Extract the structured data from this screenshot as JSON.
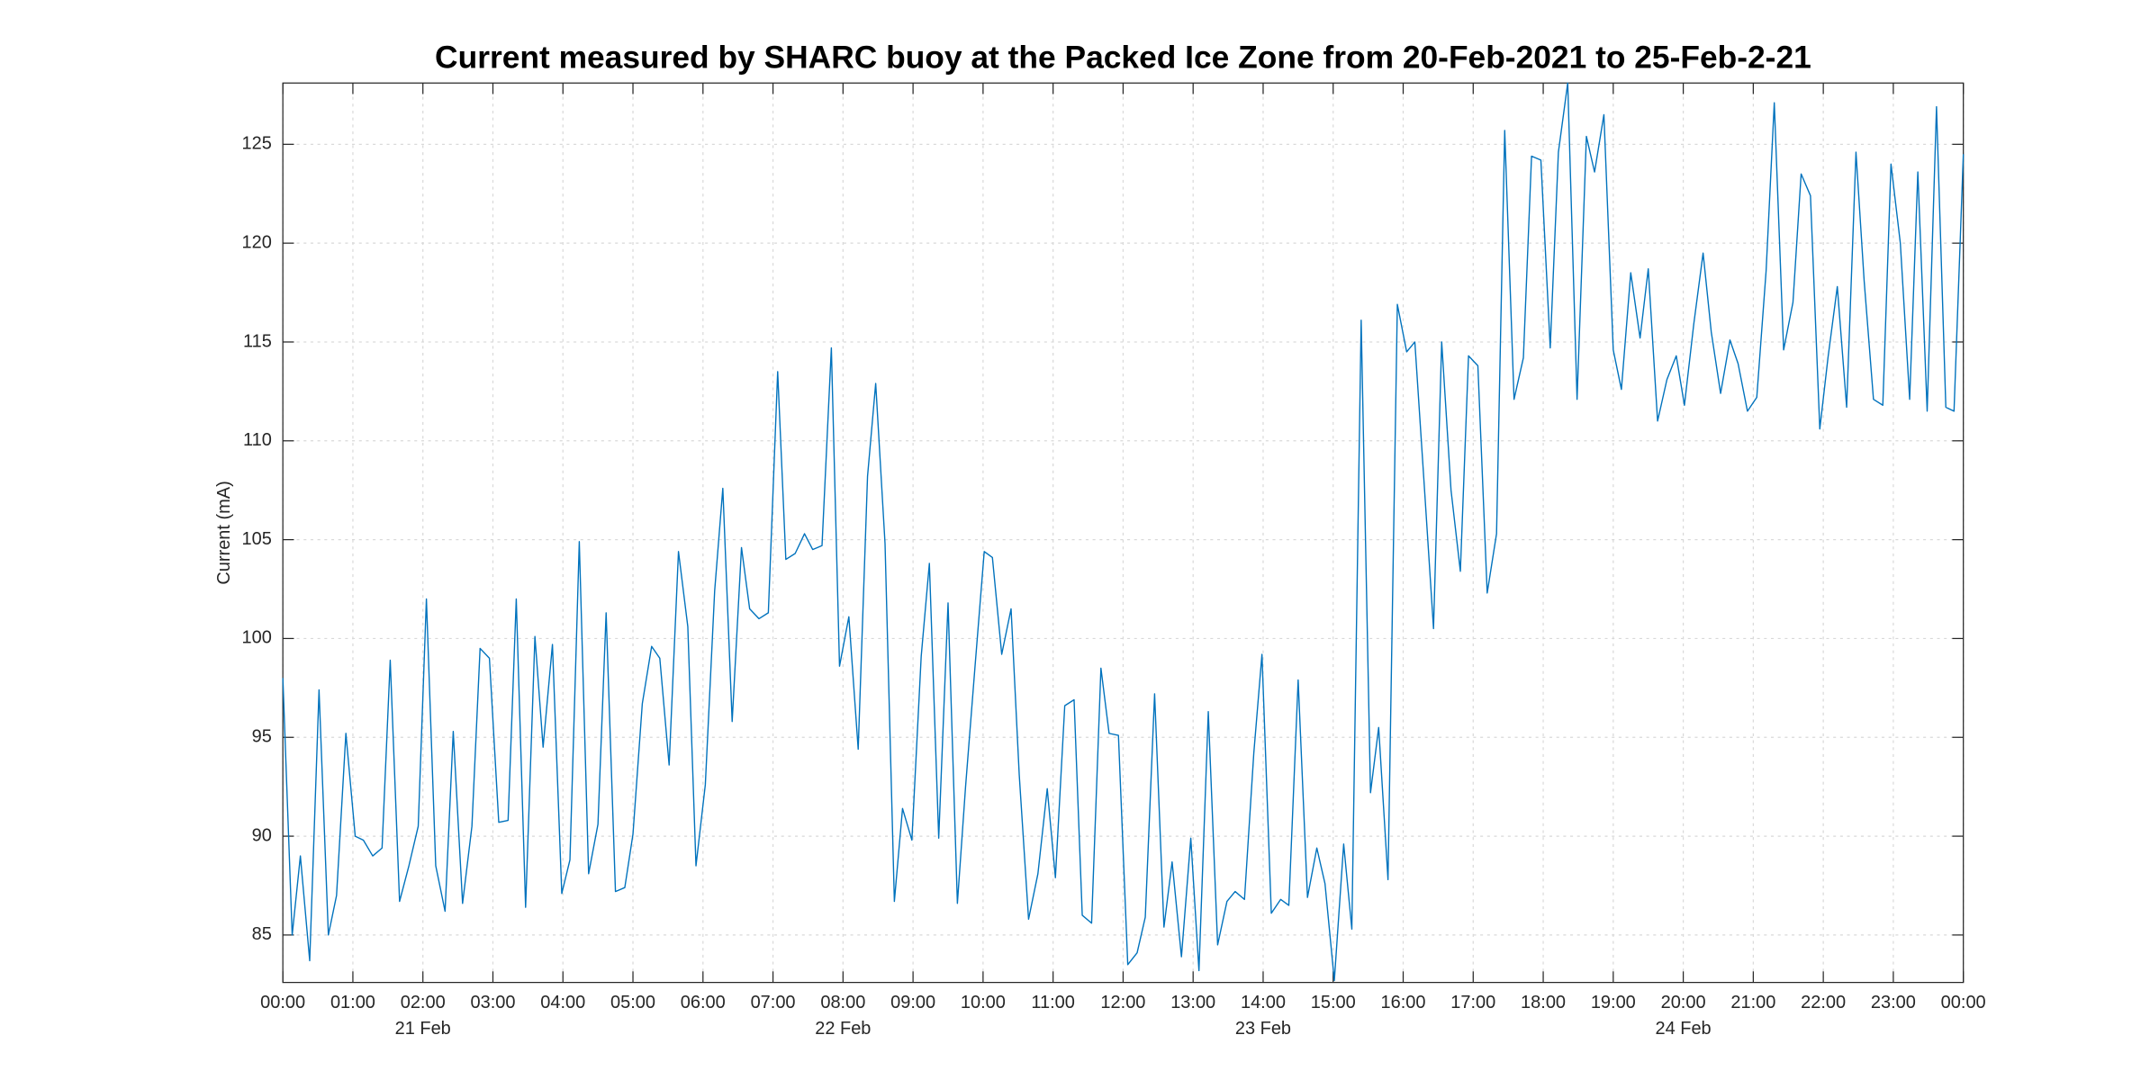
{
  "chart_data": {
    "type": "line",
    "title": "Current measured by SHARC buoy at the Packed Ice Zone from 20-Feb-2021 to 25-Feb-2-21",
    "y_label": "Current (mA)",
    "grid": true,
    "xlim": [
      0,
      1440
    ],
    "ylim": [
      82.6,
      128.1
    ],
    "yticks": [
      85,
      90,
      95,
      100,
      105,
      110,
      115,
      120,
      125
    ],
    "xticks": [
      {
        "value": 0,
        "label": "00:00"
      },
      {
        "value": 60,
        "label": "01:00"
      },
      {
        "value": 120,
        "label": "02:00"
      },
      {
        "value": 180,
        "label": "03:00"
      },
      {
        "value": 240,
        "label": "04:00"
      },
      {
        "value": 300,
        "label": "05:00"
      },
      {
        "value": 360,
        "label": "06:00"
      },
      {
        "value": 420,
        "label": "07:00"
      },
      {
        "value": 480,
        "label": "08:00"
      },
      {
        "value": 540,
        "label": "09:00"
      },
      {
        "value": 600,
        "label": "10:00"
      },
      {
        "value": 660,
        "label": "11:00"
      },
      {
        "value": 720,
        "label": "12:00"
      },
      {
        "value": 780,
        "label": "13:00"
      },
      {
        "value": 840,
        "label": "14:00"
      },
      {
        "value": 900,
        "label": "15:00"
      },
      {
        "value": 960,
        "label": "16:00"
      },
      {
        "value": 1020,
        "label": "17:00"
      },
      {
        "value": 1080,
        "label": "18:00"
      },
      {
        "value": 1140,
        "label": "19:00"
      },
      {
        "value": 1200,
        "label": "20:00"
      },
      {
        "value": 1260,
        "label": "21:00"
      },
      {
        "value": 1320,
        "label": "22:00"
      },
      {
        "value": 1380,
        "label": "23:00"
      },
      {
        "value": 1440,
        "label": "00:00"
      }
    ],
    "x_date_ticks": [
      {
        "value": 120,
        "label": "21 Feb"
      },
      {
        "value": 480,
        "label": "22 Feb"
      },
      {
        "value": 840,
        "label": "23 Feb"
      },
      {
        "value": 1200,
        "label": "24 Feb"
      }
    ],
    "x": [
      0,
      8,
      15,
      23,
      31,
      39,
      46,
      54,
      62,
      69,
      77,
      85,
      92,
      100,
      108,
      116,
      123,
      131,
      139,
      146,
      154,
      162,
      169,
      177,
      185,
      193,
      200,
      208,
      216,
      223,
      231,
      239,
      246,
      254,
      262,
      270,
      277,
      285,
      293,
      300,
      308,
      316,
      323,
      331,
      339,
      347,
      354,
      362,
      370,
      377,
      385,
      393,
      400,
      408,
      416,
      424,
      431,
      439,
      447,
      454,
      462,
      470,
      477,
      485,
      493,
      501,
      508,
      516,
      524,
      531,
      539,
      547,
      554,
      562,
      570,
      578,
      585,
      593,
      601,
      608,
      616,
      624,
      631,
      639,
      647,
      655,
      662,
      670,
      678,
      685,
      693,
      701,
      708,
      716,
      724,
      732,
      739,
      747,
      755,
      762,
      770,
      778,
      785,
      793,
      801,
      809,
      816,
      824,
      832,
      839,
      847,
      855,
      862,
      870,
      878,
      886,
      893,
      901,
      909,
      916,
      924,
      932,
      939,
      947,
      955,
      963,
      970,
      978,
      986,
      993,
      1001,
      1009,
      1016,
      1024,
      1032,
      1040,
      1047,
      1055,
      1063,
      1070,
      1078,
      1086,
      1093,
      1101,
      1109,
      1117,
      1124,
      1132,
      1140,
      1147,
      1155,
      1163,
      1170,
      1178,
      1186,
      1194,
      1201,
      1209,
      1217,
      1224,
      1232,
      1240,
      1247,
      1255,
      1263,
      1271,
      1278,
      1286,
      1294,
      1301,
      1309,
      1317,
      1324,
      1332,
      1340,
      1348,
      1355,
      1363,
      1371,
      1378,
      1386,
      1394,
      1401,
      1409,
      1417,
      1425,
      1432,
      1440
    ],
    "series": [
      {
        "color": "#0072bd",
        "values": [
          98,
          85,
          89,
          83.7,
          97.4,
          85,
          87,
          95.2,
          90,
          89.8,
          89,
          89.4,
          98.9,
          86.7,
          88.5,
          90.5,
          102,
          88.5,
          86.2,
          95.3,
          86.6,
          90.5,
          99.5,
          99,
          90.7,
          90.8,
          102,
          86.4,
          100.1,
          94.5,
          99.7,
          87.1,
          88.8,
          104.9,
          88.1,
          90.6,
          101.3,
          87.2,
          87.4,
          90.1,
          96.7,
          99.6,
          99,
          93.6,
          104.4,
          100.6,
          88.5,
          92.6,
          102.4,
          107.6,
          95.8,
          104.6,
          101.5,
          101,
          101.3,
          113.5,
          104,
          104.3,
          105.3,
          104.5,
          104.7,
          114.7,
          98.6,
          101.1,
          94.4,
          108.2,
          112.9,
          104.8,
          86.7,
          91.4,
          89.8,
          99.1,
          103.8,
          89.9,
          101.8,
          86.6,
          92.5,
          98.5,
          104.4,
          104.1,
          99.2,
          101.5,
          93.1,
          85.8,
          88.1,
          92.4,
          87.9,
          96.6,
          96.9,
          86,
          85.6,
          98.5,
          95.2,
          95.1,
          83.5,
          84.1,
          85.9,
          97.2,
          85.4,
          88.7,
          83.9,
          89.9,
          83.2,
          96.3,
          84.5,
          86.7,
          87.2,
          86.8,
          94.2,
          99.2,
          86.1,
          86.8,
          86.5,
          97.9,
          86.9,
          89.4,
          87.6,
          82.7,
          89.6,
          85.3,
          116.1,
          92.2,
          95.5,
          87.8,
          116.9,
          114.5,
          115,
          107.8,
          100.5,
          115,
          107.5,
          103.4,
          114.3,
          113.8,
          102.3,
          105.3,
          125.7,
          112.1,
          114.2,
          124.4,
          124.2,
          114.7,
          124.6,
          128.1,
          112.1,
          125.4,
          123.6,
          126.5,
          114.6,
          112.6,
          118.5,
          115.2,
          118.7,
          111,
          113.1,
          114.3,
          111.8,
          115.9,
          119.5,
          115.5,
          112.4,
          115.1,
          113.9,
          111.5,
          112.2,
          118.6,
          127.1,
          114.6,
          117,
          123.5,
          122.4,
          110.6,
          114.2,
          117.8,
          111.7,
          124.6,
          118.1,
          112.1,
          111.8,
          124,
          120,
          112.1,
          123.6,
          111.5,
          126.9,
          111.7,
          111.5,
          124.5
        ]
      }
    ]
  }
}
